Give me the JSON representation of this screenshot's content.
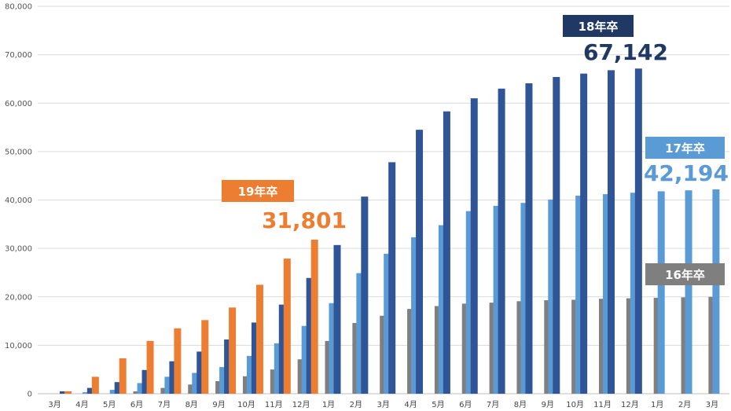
{
  "chart_data": {
    "type": "bar",
    "title": "",
    "xlabel": "",
    "ylabel": "",
    "ylim": [
      0,
      80000
    ],
    "yticks": [
      0,
      10000,
      20000,
      30000,
      40000,
      50000,
      60000,
      70000,
      80000
    ],
    "ytick_labels": [
      "0",
      "10,000",
      "20,000",
      "30,000",
      "40,000",
      "50,000",
      "60,000",
      "70,000",
      "80,000"
    ],
    "categories": [
      "3月",
      "4月",
      "5月",
      "6月",
      "7月",
      "8月",
      "9月",
      "10月",
      "11月",
      "12月",
      "1月",
      "2月",
      "3月",
      "4月",
      "5月",
      "6月",
      "7月",
      "8月",
      "9月",
      "10月",
      "11月",
      "12月",
      "1月",
      "2月",
      "3月"
    ],
    "series": [
      {
        "name": "16年卒",
        "color": "#7f7f7f",
        "values": [
          null,
          null,
          null,
          500,
          1200,
          1900,
          2600,
          3600,
          5000,
          7100,
          10900,
          14600,
          16100,
          17500,
          18100,
          18600,
          18800,
          19100,
          19300,
          19400,
          19600,
          19700,
          19800,
          19900,
          20000
        ]
      },
      {
        "name": "17年卒",
        "color": "#5b9bd5",
        "values": [
          null,
          300,
          800,
          2200,
          3500,
          4300,
          5500,
          7800,
          10400,
          14000,
          18700,
          24900,
          28900,
          32300,
          34800,
          37700,
          38800,
          39400,
          40100,
          40900,
          41200,
          41500,
          41800,
          42000,
          42194
        ]
      },
      {
        "name": "18年卒",
        "color": "#2f5597",
        "values": [
          500,
          1200,
          2400,
          4900,
          6700,
          8700,
          11200,
          14700,
          18400,
          23900,
          30700,
          40700,
          47800,
          54500,
          58300,
          61000,
          63000,
          64100,
          65400,
          66100,
          66800,
          67142,
          null,
          null,
          null
        ]
      },
      {
        "name": "19年卒",
        "color": "#ed7d31",
        "values": [
          500,
          3500,
          7300,
          10900,
          13500,
          15200,
          17800,
          22500,
          27900,
          31801,
          null,
          null,
          null,
          null,
          null,
          null,
          null,
          null,
          null,
          null,
          null,
          null,
          null,
          null,
          null
        ]
      }
    ],
    "annotations": [
      {
        "series": "19年卒",
        "badge": "19年卒",
        "value_label": "31,801",
        "badge_color": "#ed7d31",
        "value_color": "#ed7d31"
      },
      {
        "series": "18年卒",
        "badge": "18年卒",
        "value_label": "67,142",
        "badge_color": "#1f3864",
        "value_color": "#1f3864"
      },
      {
        "series": "17年卒",
        "badge": "17年卒",
        "value_label": "42,194",
        "badge_color": "#5b9bd5",
        "value_color": "#5b9bd5"
      },
      {
        "series": "16年卒",
        "badge": "16年卒",
        "value_label": "",
        "badge_color": "#7f7f7f",
        "value_color": "#7f7f7f"
      }
    ]
  }
}
